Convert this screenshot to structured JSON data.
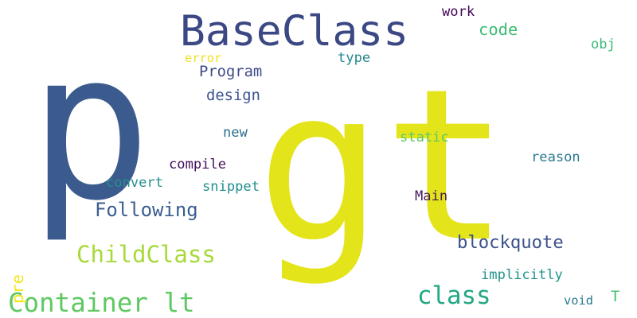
{
  "words": [
    {
      "text": "p",
      "color": "#3b5a8d"
    },
    {
      "text": "gt",
      "color": "#e3e419"
    },
    {
      "text": "BaseClass",
      "color": "#3b4883"
    },
    {
      "text": "Container lt",
      "color": "#5ec962"
    },
    {
      "text": "ChildClass",
      "color": "#a8d93b"
    },
    {
      "text": "class",
      "color": "#22a884"
    },
    {
      "text": "Following",
      "color": "#3a5f8f"
    },
    {
      "text": "blockquote",
      "color": "#3b528b"
    },
    {
      "text": "code",
      "color": "#3dbc74"
    },
    {
      "text": "Program",
      "color": "#3f4a8a"
    },
    {
      "text": "design",
      "color": "#3c5290"
    },
    {
      "text": "compile",
      "color": "#440f5c"
    },
    {
      "text": "snippet",
      "color": "#218e8d"
    },
    {
      "text": "convert",
      "color": "#26908d"
    },
    {
      "text": "Main",
      "color": "#461b59"
    },
    {
      "text": "implicitly",
      "color": "#20928c"
    },
    {
      "text": "reason",
      "color": "#2a788e"
    },
    {
      "text": "static",
      "color": "#5ac864"
    },
    {
      "text": "new",
      "color": "#2d6e8e"
    },
    {
      "text": "work",
      "color": "#450457"
    },
    {
      "text": "type",
      "color": "#24868e"
    },
    {
      "text": "error",
      "color": "#f0e11e"
    },
    {
      "text": "obj",
      "color": "#3aba76"
    },
    {
      "text": "void",
      "color": "#297b8e"
    },
    {
      "text": "T",
      "color": "#45c06f"
    },
    {
      "text": "pre",
      "color": "#f5e51d"
    }
  ]
}
